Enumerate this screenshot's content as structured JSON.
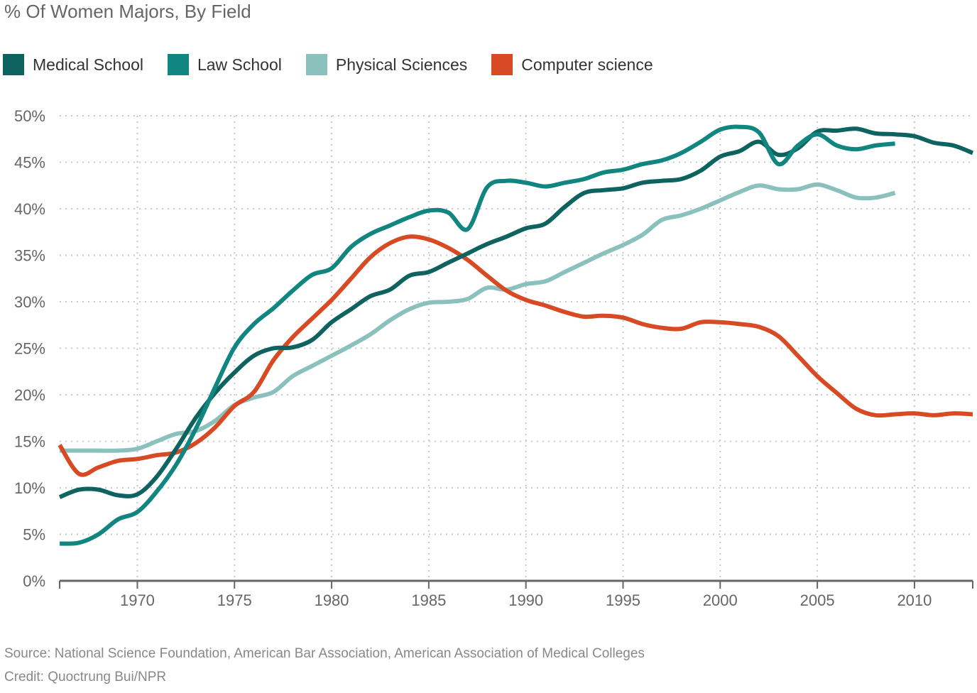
{
  "chart_data": {
    "type": "line",
    "title": "% Of Women Majors, By Field",
    "xlabel": "",
    "ylabel": "",
    "xlim": [
      1966,
      2013
    ],
    "ylim": [
      0,
      50
    ],
    "grid": true,
    "legend_position": "top-left",
    "x_ticks": [
      1970,
      1975,
      1980,
      1985,
      1990,
      1995,
      2000,
      2005,
      2010
    ],
    "x_tick_labels": [
      "1970",
      "1975",
      "1980",
      "1985",
      "1990",
      "1995",
      "2000",
      "2005",
      "2010"
    ],
    "y_ticks": [
      0,
      5,
      10,
      15,
      20,
      25,
      30,
      35,
      40,
      45,
      50
    ],
    "y_tick_labels": [
      "0%",
      "5%",
      "10%",
      "15%",
      "20%",
      "25%",
      "30%",
      "35%",
      "40%",
      "45%",
      "50%"
    ],
    "series": [
      {
        "name": "Medical School",
        "color": "#0e6360",
        "x": [
          1966,
          1967,
          1968,
          1969,
          1970,
          1971,
          1972,
          1973,
          1974,
          1975,
          1976,
          1977,
          1978,
          1979,
          1980,
          1981,
          1982,
          1983,
          1984,
          1985,
          1986,
          1987,
          1988,
          1989,
          1990,
          1991,
          1992,
          1993,
          1994,
          1995,
          1996,
          1997,
          1998,
          1999,
          2000,
          2001,
          2002,
          2003,
          2004,
          2005,
          2006,
          2007,
          2008,
          2009,
          2010,
          2011,
          2012,
          2013
        ],
        "values": [
          9.0,
          9.8,
          9.8,
          9.2,
          9.3,
          11.2,
          14.2,
          17.5,
          20.2,
          22.4,
          24.2,
          25.0,
          25.1,
          25.9,
          27.8,
          29.2,
          30.6,
          31.3,
          32.8,
          33.2,
          34.2,
          35.2,
          36.2,
          37.0,
          37.9,
          38.4,
          40.2,
          41.7,
          42.0,
          42.2,
          42.8,
          43.0,
          43.2,
          44.1,
          45.6,
          46.2,
          47.2,
          45.8,
          46.5,
          48.3,
          48.4,
          48.6,
          48.1,
          48.0,
          47.8,
          47.1,
          46.8,
          46.0
        ]
      },
      {
        "name": "Law School",
        "color": "#118680",
        "x": [
          1966,
          1967,
          1968,
          1969,
          1970,
          1971,
          1972,
          1973,
          1974,
          1975,
          1976,
          1977,
          1978,
          1979,
          1980,
          1981,
          1982,
          1983,
          1984,
          1985,
          1986,
          1987,
          1988,
          1989,
          1990,
          1991,
          1992,
          1993,
          1994,
          1995,
          1996,
          1997,
          1998,
          1999,
          2000,
          2001,
          2002,
          2003,
          2004,
          2005,
          2006,
          2007,
          2008,
          2009
        ],
        "values": [
          4.0,
          4.1,
          5.0,
          6.6,
          7.4,
          9.6,
          12.5,
          16.3,
          20.8,
          25.1,
          27.6,
          29.3,
          31.2,
          32.9,
          33.6,
          35.9,
          37.3,
          38.2,
          39.1,
          39.8,
          39.6,
          37.8,
          42.3,
          43.0,
          42.8,
          42.4,
          42.8,
          43.2,
          43.9,
          44.2,
          44.8,
          45.2,
          46.0,
          47.2,
          48.5,
          48.8,
          48.2,
          44.8,
          46.8,
          48.0,
          46.8,
          46.4,
          46.8,
          47.0
        ]
      },
      {
        "name": "Physical Sciences",
        "color": "#8bc1bd",
        "x": [
          1966,
          1967,
          1968,
          1969,
          1970,
          1971,
          1972,
          1973,
          1974,
          1975,
          1976,
          1977,
          1978,
          1979,
          1980,
          1981,
          1982,
          1983,
          1984,
          1985,
          1986,
          1987,
          1988,
          1989,
          1990,
          1991,
          1992,
          1993,
          1994,
          1995,
          1996,
          1997,
          1998,
          1999,
          2000,
          2001,
          2002,
          2003,
          2004,
          2005,
          2006,
          2007,
          2008,
          2009
        ],
        "values": [
          14.0,
          14.0,
          14.0,
          14.0,
          14.2,
          15.0,
          15.8,
          16.1,
          17.2,
          18.9,
          19.7,
          20.3,
          22.0,
          23.1,
          24.2,
          25.3,
          26.5,
          28.0,
          29.2,
          29.9,
          30.0,
          30.3,
          31.5,
          31.3,
          31.9,
          32.2,
          33.2,
          34.2,
          35.2,
          36.1,
          37.2,
          38.8,
          39.3,
          40.0,
          40.9,
          41.8,
          42.5,
          42.1,
          42.1,
          42.6,
          42.0,
          41.2,
          41.2,
          41.7
        ]
      },
      {
        "name": "Computer science",
        "color": "#d84a24",
        "x": [
          1966,
          1967,
          1968,
          1969,
          1970,
          1971,
          1972,
          1973,
          1974,
          1975,
          1976,
          1977,
          1978,
          1979,
          1980,
          1981,
          1982,
          1983,
          1984,
          1985,
          1986,
          1987,
          1988,
          1989,
          1990,
          1991,
          1992,
          1993,
          1994,
          1995,
          1996,
          1997,
          1998,
          1999,
          2000,
          2001,
          2002,
          2003,
          2004,
          2005,
          2006,
          2007,
          2008,
          2009,
          2010,
          2011,
          2012,
          2013
        ],
        "values": [
          14.6,
          11.5,
          12.2,
          12.9,
          13.1,
          13.5,
          13.8,
          14.8,
          16.5,
          18.8,
          20.3,
          23.7,
          26.2,
          28.2,
          30.2,
          32.5,
          34.8,
          36.3,
          37.0,
          36.7,
          35.8,
          34.5,
          32.8,
          31.2,
          30.2,
          29.6,
          28.9,
          28.4,
          28.5,
          28.3,
          27.6,
          27.2,
          27.1,
          27.8,
          27.8,
          27.6,
          27.3,
          26.3,
          24.2,
          22.0,
          20.2,
          18.5,
          17.8,
          17.9,
          18.0,
          17.8,
          18.0,
          17.9
        ]
      }
    ]
  },
  "footer": {
    "source": "Source: National Science Foundation, American Bar Association, American Association of Medical Colleges",
    "credit": "Credit: Quoctrung Bui/NPR"
  }
}
